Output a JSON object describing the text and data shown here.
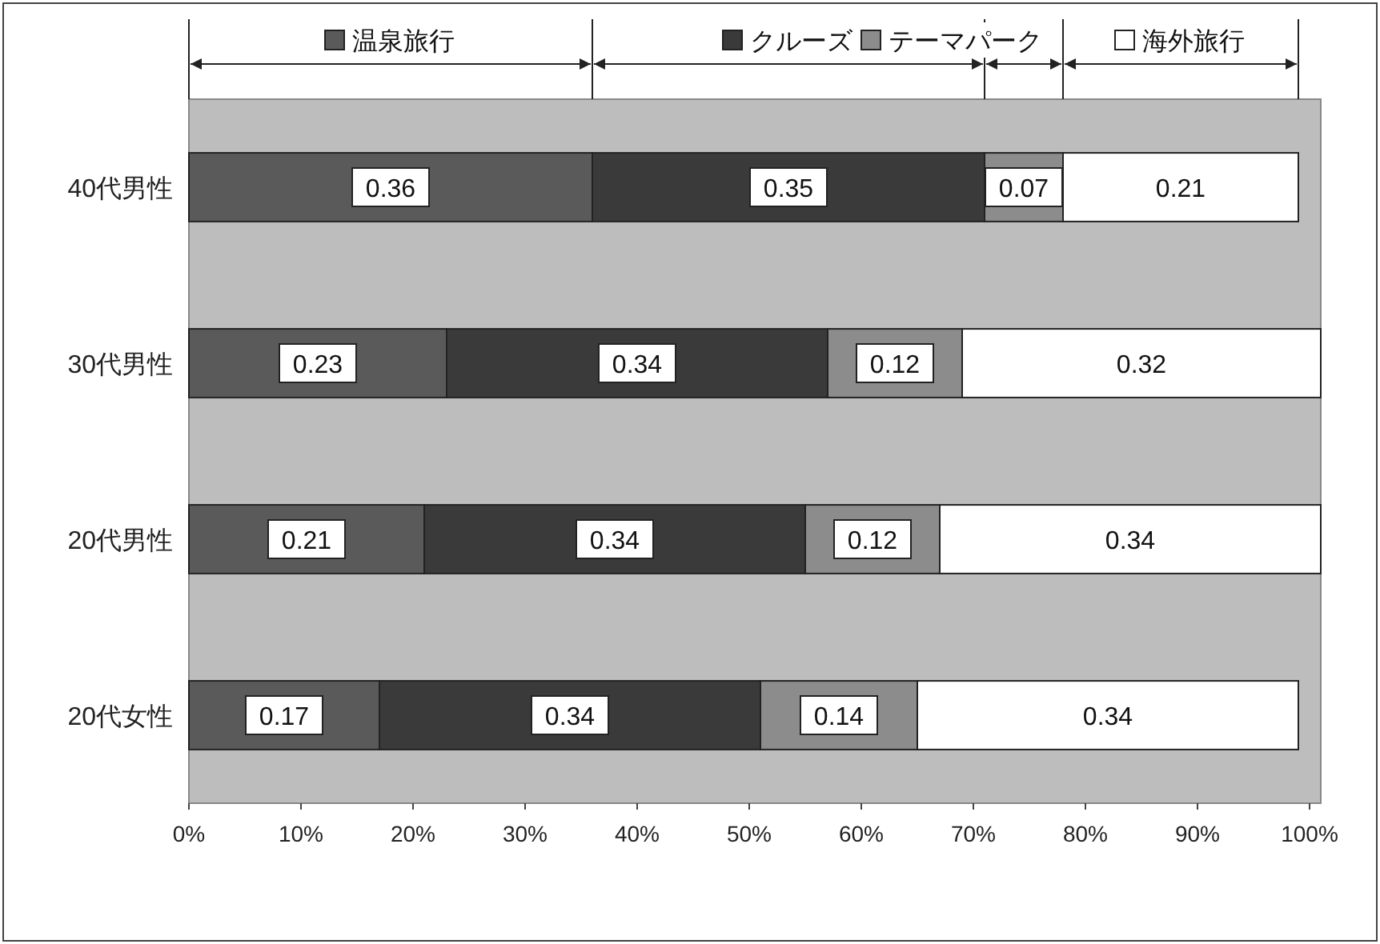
{
  "chart_data": {
    "type": "bar",
    "orientation": "horizontal",
    "stacked": true,
    "data_labels": true,
    "legend": "top",
    "grid": false,
    "categories": [
      "40代男性",
      "30代男性",
      "20代男性",
      "20代女性"
    ],
    "series": [
      {
        "name": "温泉旅行",
        "color": "#5a5a5a",
        "values": [
          0.36,
          0.23,
          0.21,
          0.17
        ]
      },
      {
        "name": "クルーズ",
        "color": "#3a3a3a",
        "values": [
          0.35,
          0.34,
          0.34,
          0.34
        ]
      },
      {
        "name": "テーマパーク",
        "color": "#8c8c8c",
        "values": [
          0.07,
          0.12,
          0.12,
          0.14
        ]
      },
      {
        "name": "海外旅行",
        "color": "#ffffff",
        "values": [
          0.21,
          0.32,
          0.34,
          0.34
        ]
      }
    ],
    "xlim": [
      0,
      1.01
    ],
    "xticks": [
      {
        "value": 0,
        "label": "0%"
      },
      {
        "value": 0.1,
        "label": "10%"
      },
      {
        "value": 0.2,
        "label": "20%"
      },
      {
        "value": 0.3,
        "label": "30%"
      },
      {
        "value": 0.4,
        "label": "40%"
      },
      {
        "value": 0.5,
        "label": "50%"
      },
      {
        "value": 0.6,
        "label": "60%"
      },
      {
        "value": 0.7,
        "label": "70%"
      },
      {
        "value": 0.8,
        "label": "80%"
      },
      {
        "value": 0.9,
        "label": "90%"
      },
      {
        "value": 1,
        "label": "100%"
      }
    ]
  }
}
